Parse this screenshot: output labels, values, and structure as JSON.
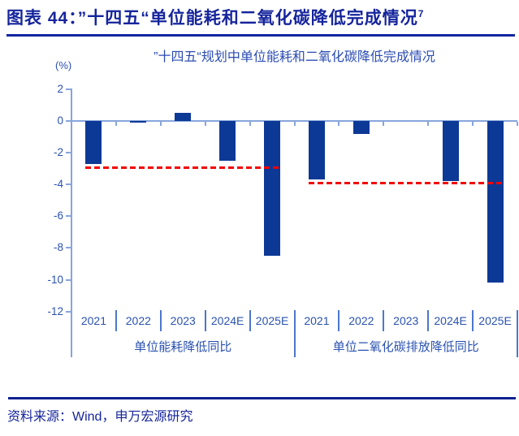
{
  "header": {
    "title": "图表 44：”十四五“单位能耗和二氧化碳降低完成情况",
    "footnote": "7"
  },
  "source": {
    "text": "资料来源：Wind，申万宏源研究"
  },
  "chart_data": {
    "type": "bar",
    "title": "”十四五“规划中单位能耗和二氧化碳降低完成情况",
    "xlabel": "",
    "ylabel": "(%)",
    "ylim": [
      -12,
      2
    ],
    "yticks": [
      2,
      0,
      -2,
      -4,
      -6,
      -8,
      -10,
      -12
    ],
    "grid": false,
    "legend_position": "none",
    "categories": [
      "2021",
      "2022",
      "2023",
      "2024E",
      "2025E"
    ],
    "groups": [
      {
        "name": "单位能耗降低同比",
        "values": [
          -2.7,
          -0.1,
          0.5,
          -2.5,
          -8.5
        ],
        "target_line": -2.9
      },
      {
        "name": "单位二氧化碳排放降低同比",
        "values": [
          -3.7,
          -0.8,
          0.0,
          -3.8,
          -10.2
        ],
        "target_line": -3.9
      }
    ],
    "bar_color": "#0d3996",
    "target_line_color": "#f20000",
    "axis_color": "#88a5dc",
    "label_color": "#2a52b0"
  }
}
